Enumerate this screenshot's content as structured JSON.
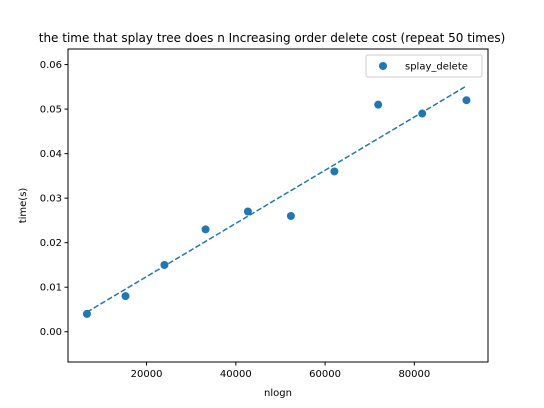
{
  "chart_data": {
    "type": "scatter",
    "title": "the time that splay tree does n Increasing order delete cost (repeat 50 times)",
    "xlabel": "nlogn",
    "ylabel": "time(s)",
    "xlim": [
      2400,
      96500
    ],
    "ylim": [
      -0.0068,
      0.0635
    ],
    "x_ticks": [
      20000,
      40000,
      60000,
      80000
    ],
    "x_tick_labels": [
      "20000",
      "40000",
      "60000",
      "80000"
    ],
    "y_ticks": [
      0.0,
      0.01,
      0.02,
      0.03,
      0.04,
      0.05,
      0.06
    ],
    "y_tick_labels": [
      "0.00",
      "0.01",
      "0.02",
      "0.03",
      "0.04",
      "0.05",
      "0.06"
    ],
    "grid": false,
    "legend_position": "top-right",
    "series": [
      {
        "name": "splay_delete",
        "color": "#1f77b4",
        "marker": "circle",
        "x": [
          6644,
          15290,
          24000,
          33220,
          42710,
          52345,
          62085,
          71900,
          81760,
          91675
        ],
        "y": [
          0.004,
          0.008,
          0.015,
          0.023,
          0.027,
          0.026,
          0.036,
          0.051,
          0.049,
          0.052
        ]
      }
    ],
    "fit_line": {
      "style": "dashed",
      "color": "#1f77b4",
      "x": [
        6644,
        91675
      ],
      "y": [
        0.0044,
        0.0552
      ]
    }
  }
}
